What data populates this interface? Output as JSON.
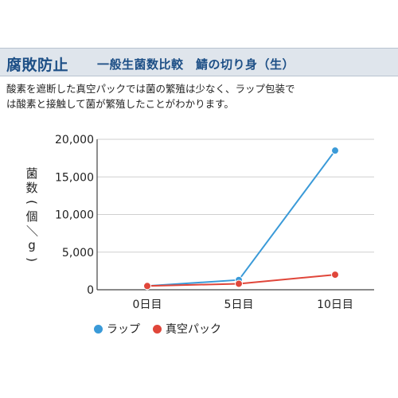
{
  "header": {
    "title": "腐敗防止",
    "subtitle": "一般生菌数比較　鯖の切り身（生）"
  },
  "description": {
    "line1": "酸素を遮断した真空パックでは菌の繁殖は少なく、ラップ包装で",
    "line2": "は酸素と接触して菌が繁殖したことがわかります。"
  },
  "colors": {
    "wrap": "#3a9ad8",
    "vacuum": "#e0463a"
  },
  "chart_data": {
    "type": "line",
    "categories": [
      "0日目",
      "5日目",
      "10日目"
    ],
    "ylabel": "菌数(個／g)",
    "ylim": [
      0,
      20000
    ],
    "yticks": [
      0,
      5000,
      10000,
      15000,
      20000
    ],
    "ytick_labels": [
      "0",
      "5,000",
      "10,000",
      "15,000",
      "20,000"
    ],
    "grid": "horizontal",
    "legend_position": "bottom-left",
    "series": [
      {
        "name": "ラップ",
        "values": [
          500,
          1300,
          18500
        ]
      },
      {
        "name": "真空パック",
        "values": [
          500,
          800,
          2000
        ]
      }
    ]
  }
}
